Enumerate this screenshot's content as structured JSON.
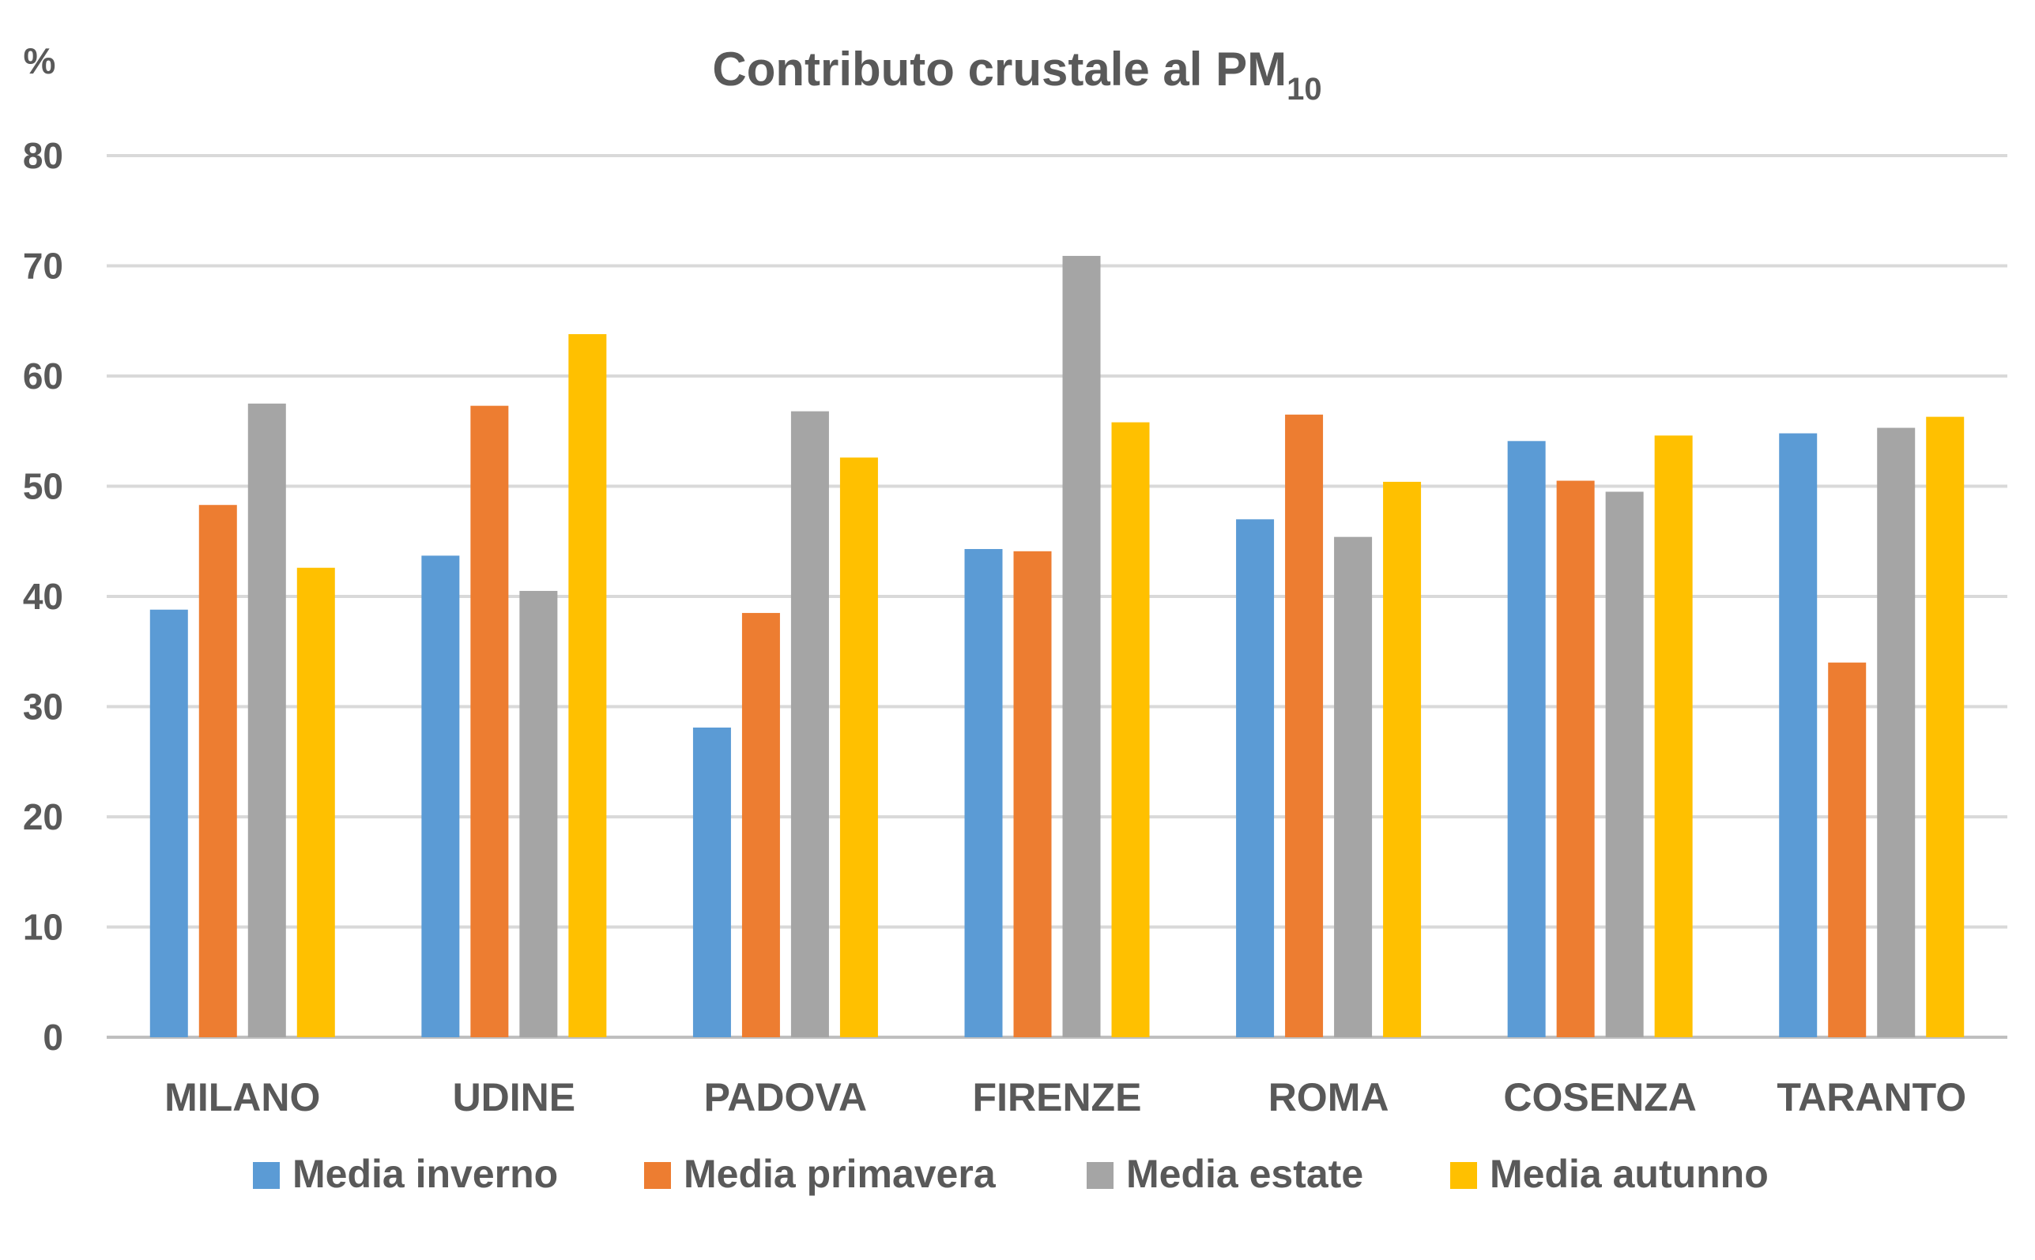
{
  "chart_data": {
    "type": "bar",
    "title": "Contributo crustale al PM",
    "title_subscript": "10",
    "ylabel": "%",
    "xlabel": "",
    "ylim": [
      0,
      80
    ],
    "yticks": [
      "0",
      "10",
      "20",
      "30",
      "40",
      "50",
      "60",
      "70",
      "80"
    ],
    "grid": true,
    "legend_position": "bottom",
    "categories": [
      "MILANO",
      "UDINE",
      "PADOVA",
      "FIRENZE",
      "ROMA",
      "COSENZA",
      "TARANTO"
    ],
    "series": [
      {
        "name": "Media inverno",
        "color": "#5B9BD5",
        "values": [
          38.8,
          43.7,
          28.1,
          44.3,
          47.0,
          54.1,
          54.8
        ]
      },
      {
        "name": "Media primavera",
        "color": "#ED7D31",
        "values": [
          48.3,
          57.3,
          38.5,
          44.1,
          56.5,
          50.5,
          34.0
        ]
      },
      {
        "name": "Media estate",
        "color": "#A5A5A5",
        "values": [
          57.5,
          40.5,
          56.8,
          70.9,
          45.4,
          49.5,
          55.3
        ]
      },
      {
        "name": "Media autunno",
        "color": "#FFC000",
        "values": [
          42.6,
          63.8,
          52.6,
          55.8,
          50.4,
          54.6,
          56.3
        ]
      }
    ],
    "gridline_color": "#D9D9D9",
    "axis_color": "#BFBFBF"
  }
}
